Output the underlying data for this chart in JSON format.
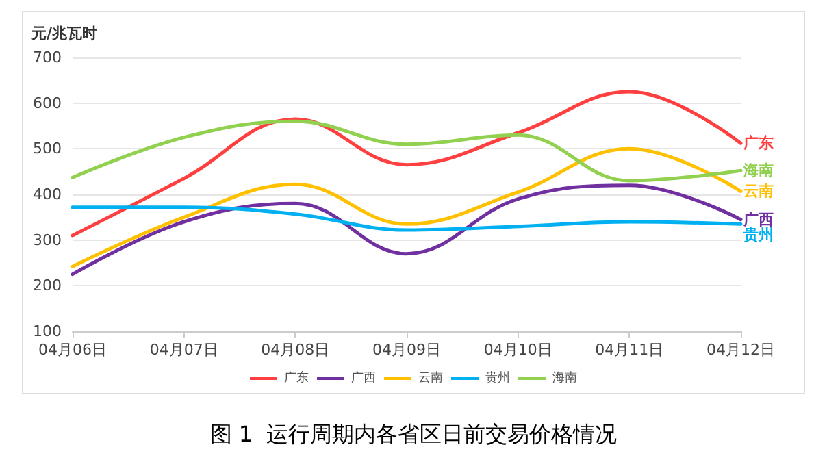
{
  "chart_data": {
    "type": "line",
    "title": "图 1  运行周期内各省区日前交易价格情况",
    "ylabel": "元/兆瓦时",
    "categories": [
      "04月06日",
      "04月07日",
      "04月08日",
      "04月09日",
      "04月10日",
      "04月11日",
      "04月12日"
    ],
    "series": [
      {
        "name": "广东",
        "color": "#ff4040",
        "values": [
          310,
          435,
          565,
          465,
          535,
          625,
          512
        ]
      },
      {
        "name": "广西",
        "color": "#7030a0",
        "values": [
          225,
          340,
          380,
          270,
          390,
          420,
          345
        ]
      },
      {
        "name": "云南",
        "color": "#ffc000",
        "values": [
          242,
          350,
          422,
          335,
          405,
          500,
          407
        ]
      },
      {
        "name": "贵州",
        "color": "#00b0f0",
        "values": [
          372,
          372,
          357,
          322,
          330,
          340,
          335
        ]
      },
      {
        "name": "海南",
        "color": "#92d050",
        "values": [
          437,
          525,
          560,
          510,
          530,
          430,
          452
        ]
      }
    ],
    "ylim": [
      100,
      700
    ],
    "yticks": [
      100,
      200,
      300,
      400,
      500,
      600,
      700
    ],
    "grid": "y",
    "legend": "bottom",
    "marker": "none",
    "line_style": "solid"
  }
}
